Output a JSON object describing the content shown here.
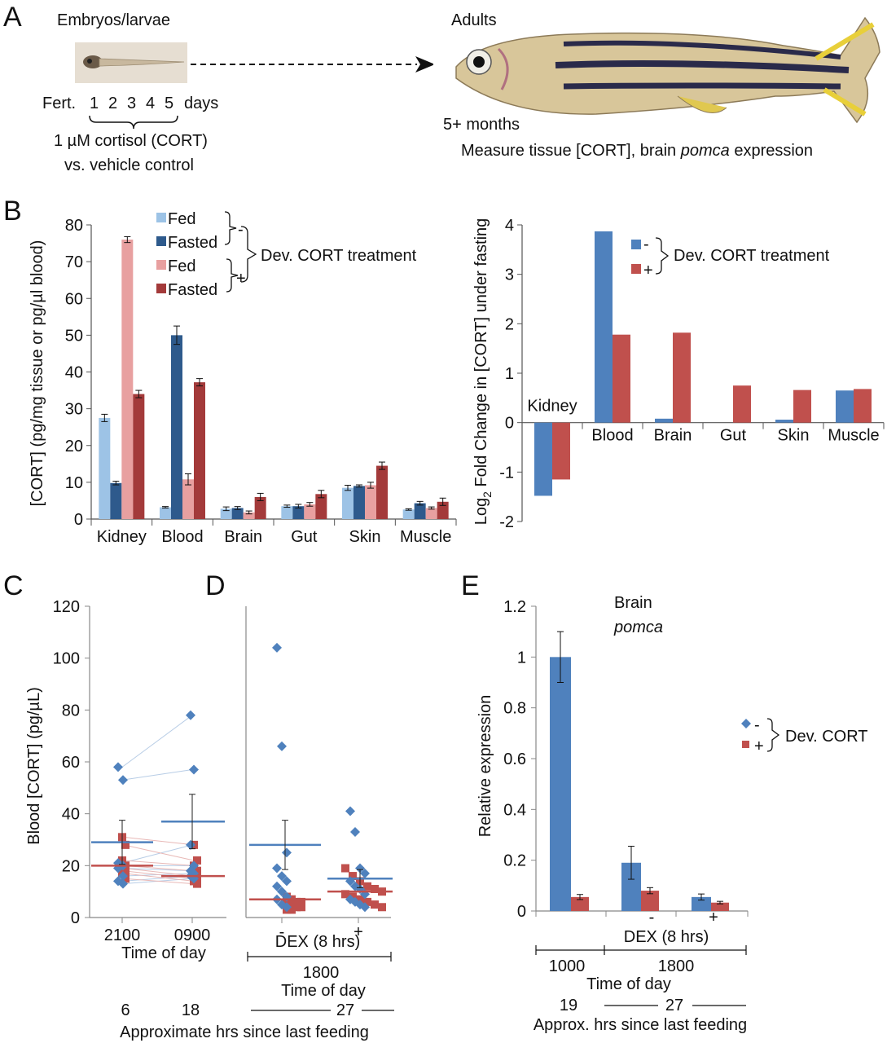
{
  "panelA": {
    "label": "A",
    "embryo_title": "Embryos/larvae",
    "fert": "Fert.",
    "days": [
      "1",
      "2",
      "3",
      "4",
      "5"
    ],
    "days_unit": "days",
    "treatment_line1": "1 µM cortisol (CORT)",
    "treatment_line2": "vs. vehicle control",
    "adults_title": "Adults",
    "adults_age": "5+ months",
    "measure_prefix": "Measure tissue [CORT], brain ",
    "measure_gene": "pomca",
    "measure_suffix": " expression"
  },
  "panelB_label": "B",
  "panelC_label": "C",
  "panelD_label": "D",
  "panelE_label": "E",
  "colors": {
    "fed_minus": "#9dc3e6",
    "fasted_minus": "#2e5a8c",
    "fed_plus": "#e8a0a0",
    "fasted_plus": "#a33a3a",
    "blue": "#4f81bd",
    "red": "#c0504d"
  },
  "chart_data": [
    {
      "id": "B-left",
      "type": "bar",
      "ylabel": "[CORT] (pg/mg tissue or pg/µl blood)",
      "ylim": [
        0,
        80
      ],
      "yticks": [
        0,
        10,
        20,
        30,
        40,
        50,
        60,
        70,
        80
      ],
      "categories": [
        "Kidney",
        "Blood",
        "Brain",
        "Gut",
        "Skin",
        "Muscle"
      ],
      "legend": [
        "Fed",
        "Fasted",
        "Fed",
        "Fasted"
      ],
      "legend_groups": [
        "-",
        "+"
      ],
      "legend_title": "Dev. CORT treatment",
      "series": [
        {
          "name": "Fed",
          "group": "-",
          "values": [
            27.5,
            3.2,
            2.8,
            3.5,
            8.5,
            2.6
          ],
          "err": [
            1.0,
            0.2,
            0.5,
            0.3,
            0.7,
            0.2
          ]
        },
        {
          "name": "Fasted",
          "group": "-",
          "values": [
            9.8,
            50.0,
            3.0,
            3.5,
            9.0,
            4.3
          ],
          "err": [
            0.5,
            2.5,
            0.4,
            0.5,
            0.3,
            0.5
          ]
        },
        {
          "name": "Fed",
          "group": "+",
          "values": [
            76.0,
            10.8,
            1.8,
            4.0,
            9.2,
            3.0
          ],
          "err": [
            0.8,
            1.5,
            0.4,
            0.5,
            0.8,
            0.3
          ]
        },
        {
          "name": "Fasted",
          "group": "+",
          "values": [
            34.0,
            37.2,
            6.0,
            6.8,
            14.5,
            4.7
          ],
          "err": [
            1.0,
            1.0,
            1.0,
            1.0,
            1.0,
            1.0
          ]
        }
      ]
    },
    {
      "id": "B-right",
      "type": "bar",
      "ylabel_pre": "Log",
      "ylabel_sub": "2",
      "ylabel_post": " Fold Change in [CORT] under fasting",
      "ylim": [
        -2,
        4
      ],
      "yticks": [
        -2,
        -1,
        0,
        1,
        2,
        3,
        4
      ],
      "categories": [
        "Kidney",
        "Blood",
        "Brain",
        "Gut",
        "Skin",
        "Muscle"
      ],
      "legend_title": "Dev. CORT treatment",
      "series": [
        {
          "name": "-",
          "values": [
            -1.48,
            3.87,
            0.08,
            0.0,
            0.06,
            0.65
          ]
        },
        {
          "name": "+",
          "values": [
            -1.15,
            1.78,
            1.82,
            0.75,
            0.66,
            0.68
          ]
        }
      ]
    },
    {
      "id": "C",
      "type": "scatter",
      "ylabel": "Blood [CORT] (pg/µL)",
      "ylim": [
        0,
        120
      ],
      "yticks": [
        0,
        20,
        40,
        60,
        80,
        100,
        120
      ],
      "xlabel": "Time of day",
      "categories": [
        "2100",
        "0900"
      ],
      "hours_label": "Approximate hrs since last feeding",
      "hours": [
        "6",
        "18"
      ],
      "series": [
        {
          "name": "-",
          "values_2100": [
            58,
            53,
            21,
            20,
            19,
            16,
            14,
            13
          ],
          "values_0900": [
            78,
            57,
            28,
            20,
            18,
            17,
            16,
            15
          ],
          "mean": [
            29,
            37
          ],
          "err_0900": 10.5,
          "err_2100": 8.5
        },
        {
          "name": "+",
          "values_2100": [
            31,
            28,
            22,
            20,
            19,
            18,
            17,
            15
          ],
          "values_0900": [
            28,
            22,
            20,
            18,
            16,
            15,
            14,
            13
          ],
          "mean": [
            20,
            16
          ]
        }
      ]
    },
    {
      "id": "D",
      "type": "scatter",
      "xlabel": "DEX (8 hrs)",
      "categories": [
        "-",
        "+"
      ],
      "time_value": "1800",
      "time_label": "Time of day",
      "hours_value": "27",
      "series": [
        {
          "name": "-",
          "values_minus": [
            104,
            66,
            25,
            19,
            16,
            14,
            12,
            10,
            8,
            7,
            5,
            4
          ],
          "values_plus": [
            41,
            33,
            19,
            17,
            14,
            12,
            11,
            9,
            7,
            6,
            5,
            4
          ],
          "mean": [
            28,
            15
          ],
          "err": [
            9.5,
            3.5
          ]
        },
        {
          "name": "+",
          "values_minus": [
            8,
            7,
            6,
            6,
            5,
            5,
            4,
            4,
            3,
            3
          ],
          "values_plus": [
            19,
            16,
            14,
            12,
            11,
            10,
            9,
            8,
            7,
            6,
            5,
            4
          ],
          "mean": [
            7,
            10
          ]
        }
      ]
    },
    {
      "id": "E",
      "type": "bar",
      "title": "Brain",
      "title_gene": "pomca",
      "ylabel": "Relative expression",
      "ylim": [
        0,
        1.2
      ],
      "yticks": [
        "0",
        "0.2",
        "0.4",
        "0.6",
        "0.8",
        "1",
        "1.2"
      ],
      "xlabel": "DEX (8 hrs)",
      "dex_labels": [
        "-",
        "+"
      ],
      "legend": [
        "-",
        "+"
      ],
      "legend_title": "Dev. CORT",
      "time_values": [
        "1000",
        "1800"
      ],
      "time_label": "Time of day",
      "hours_values": [
        "19",
        "27"
      ],
      "hours_label": "Approx. hrs since last feeding",
      "series": [
        {
          "name": "-",
          "values": [
            1.0,
            0.19,
            0.055
          ],
          "err": [
            0.1,
            0.065,
            0.012
          ]
        },
        {
          "name": "+",
          "values": [
            0.055,
            0.08,
            0.033
          ],
          "err": [
            0.01,
            0.012,
            0.005
          ]
        }
      ]
    }
  ]
}
